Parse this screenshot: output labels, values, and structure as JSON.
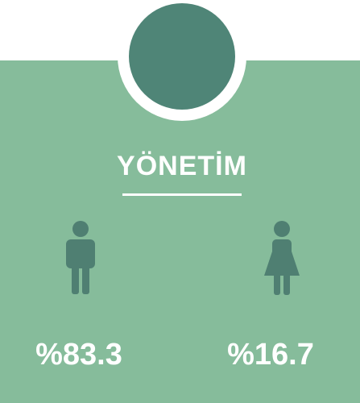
{
  "card": {
    "title": "YÖNETİM",
    "stats": [
      {
        "label": "%83.3"
      },
      {
        "label": "%16.7"
      }
    ]
  }
}
